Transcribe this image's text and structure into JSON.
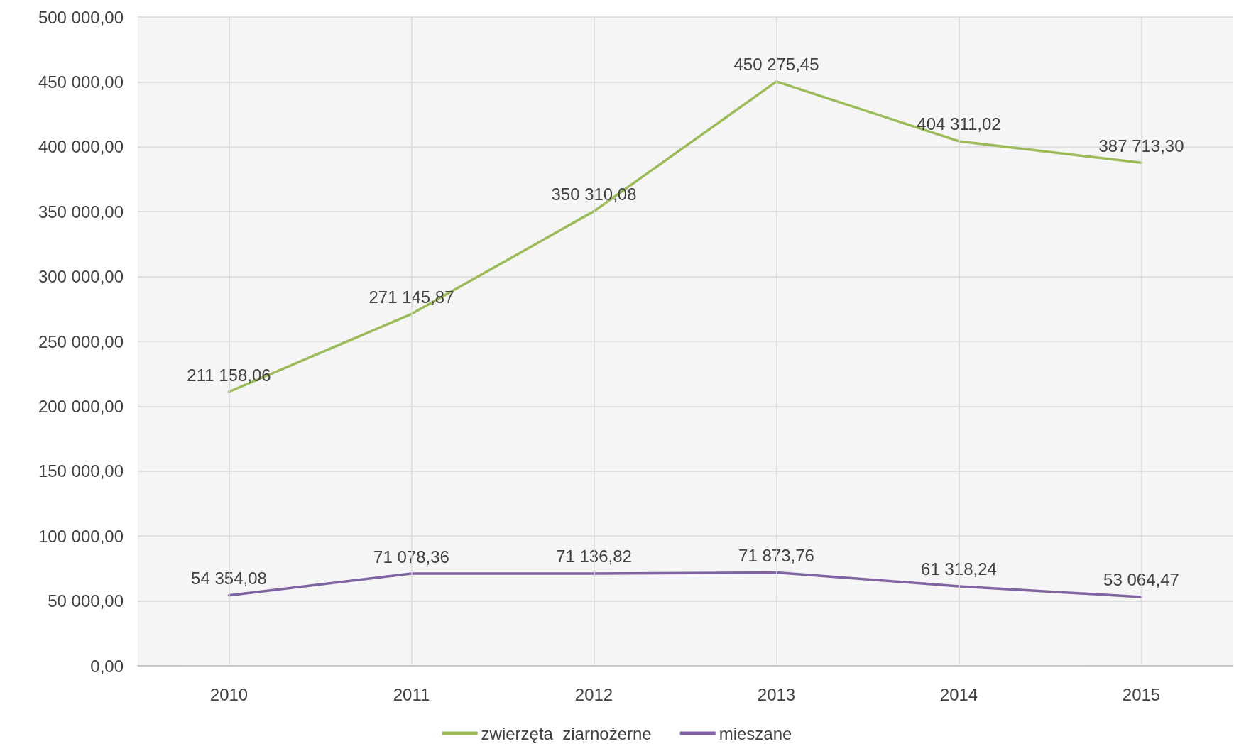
{
  "chart_data": {
    "type": "line",
    "categories": [
      "2010",
      "2011",
      "2012",
      "2013",
      "2014",
      "2015"
    ],
    "series": [
      {
        "name": "zwierzęta  ziarnożerne",
        "color": "#9bbb59",
        "values": [
          211158.06,
          271145.87,
          350310.08,
          450275.45,
          404311.02,
          387713.3
        ],
        "value_labels": [
          "211 158,06",
          "271 145,87",
          "350 310,08",
          "450 275,45",
          "404 311,02",
          "387 713,30"
        ]
      },
      {
        "name": "mieszane",
        "color": "#8064a2",
        "values": [
          54354.08,
          71078.36,
          71136.82,
          71873.76,
          61318.24,
          53064.47
        ],
        "value_labels": [
          "54 354,08",
          "71 078,36",
          "71 136,82",
          "71 873,76",
          "61 318,24",
          "53 064,47"
        ]
      }
    ],
    "ylim": [
      0,
      500000
    ],
    "yticks": [
      {
        "value": 0,
        "label": "0,00"
      },
      {
        "value": 50000,
        "label": "50 000,00"
      },
      {
        "value": 100000,
        "label": "100 000,00"
      },
      {
        "value": 150000,
        "label": "150 000,00"
      },
      {
        "value": 200000,
        "label": "200 000,00"
      },
      {
        "value": 250000,
        "label": "250 000,00"
      },
      {
        "value": 300000,
        "label": "300 000,00"
      },
      {
        "value": 350000,
        "label": "350 000,00"
      },
      {
        "value": 400000,
        "label": "400 000,00"
      },
      {
        "value": 450000,
        "label": "450 000,00"
      },
      {
        "value": 500000,
        "label": "500 000,00"
      }
    ],
    "grid": true,
    "legend": "bottom",
    "marker": "none",
    "line_style": "solid"
  }
}
